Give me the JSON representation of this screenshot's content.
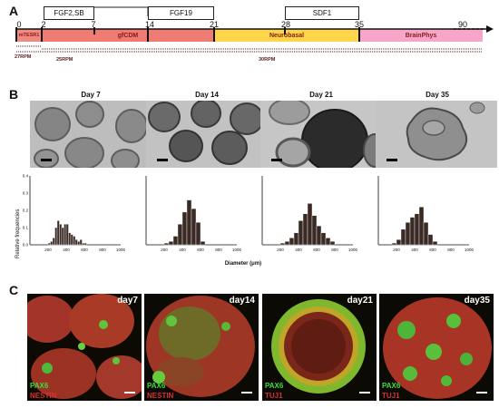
{
  "panels": {
    "a": "A",
    "b": "B",
    "c": "C"
  },
  "timeline": {
    "ticks": [
      "0",
      "2",
      "7",
      "14",
      "21",
      "28",
      "35",
      "90"
    ],
    "factors": {
      "fgf2_sb": "FGF2,SB",
      "fgf19": "FGF19",
      "sdf1": "SDF1"
    },
    "media": {
      "mtesr1": "mTESR1",
      "gfcdm": "gfCDM",
      "neurobasal": "Neurobasal",
      "brainphys": "BrainPhys"
    },
    "media_colors": {
      "mtesr1": "#f08a80",
      "gfcdm": "#ef7b72",
      "neurobasal": "#ffd54a",
      "brainphys": "#f7a6c9"
    },
    "rpm": {
      "rpm27": "27RPM",
      "rpm25": "25RPM",
      "rpm30": "30RPM"
    }
  },
  "panel_b": {
    "days": [
      "Day 7",
      "Day 14",
      "Day 21",
      "Day 35"
    ],
    "ylabel": "Relative frequencies",
    "xlabel": "Diameter (μm)",
    "y_ticks": [
      "0.0",
      "0.1",
      "0.2",
      "0.3",
      "0.4"
    ],
    "x_ticks": [
      "200",
      "400",
      "600",
      "800",
      "1000"
    ]
  },
  "chart_data": [
    {
      "type": "bar",
      "title": "Day 7",
      "xlabel": "Diameter (μm)",
      "ylabel": "Relative frequencies",
      "bin_width": 25,
      "x": [
        200,
        225,
        250,
        275,
        300,
        325,
        350,
        375,
        400,
        425,
        450,
        475,
        500,
        525,
        550,
        575,
        600
      ],
      "values": [
        0.01,
        0.02,
        0.04,
        0.1,
        0.14,
        0.12,
        0.1,
        0.12,
        0.12,
        0.07,
        0.06,
        0.05,
        0.03,
        0.02,
        0.03,
        0.01,
        0.01
      ],
      "xlim": [
        0,
        1000
      ],
      "ylim": [
        0,
        0.4
      ]
    },
    {
      "type": "bar",
      "title": "Day 14",
      "xlabel": "Diameter (μm)",
      "ylabel": "Relative frequencies",
      "bin_width": 50,
      "x": [
        200,
        250,
        300,
        350,
        400,
        450,
        500,
        550,
        600
      ],
      "values": [
        0.01,
        0.02,
        0.05,
        0.12,
        0.19,
        0.26,
        0.21,
        0.13,
        0.02
      ],
      "xlim": [
        0,
        1000
      ],
      "ylim": [
        0,
        0.4
      ]
    },
    {
      "type": "bar",
      "title": "Day 21",
      "xlabel": "Diameter (μm)",
      "ylabel": "Relative frequencies",
      "bin_width": 50,
      "x": [
        200,
        250,
        300,
        350,
        400,
        450,
        500,
        550,
        600,
        650,
        700,
        750
      ],
      "values": [
        0.01,
        0.02,
        0.04,
        0.07,
        0.14,
        0.18,
        0.24,
        0.17,
        0.11,
        0.07,
        0.04,
        0.02
      ],
      "xlim": [
        0,
        1000
      ],
      "ylim": [
        0,
        0.4
      ]
    },
    {
      "type": "bar",
      "title": "Day 35",
      "xlabel": "Diameter (μm)",
      "ylabel": "Relative frequencies",
      "bin_width": 50,
      "x": [
        150,
        200,
        250,
        300,
        350,
        400,
        450,
        500,
        550,
        600
      ],
      "values": [
        0.01,
        0.03,
        0.09,
        0.13,
        0.16,
        0.18,
        0.22,
        0.13,
        0.06,
        0.02
      ],
      "xlim": [
        0,
        1000
      ],
      "ylim": [
        0,
        0.4
      ]
    }
  ],
  "panel_c": [
    {
      "day": "day7",
      "marker1": "PAX6",
      "marker2": "NESTIN"
    },
    {
      "day": "day14",
      "marker1": "PAX6",
      "marker2": "NESTIN"
    },
    {
      "day": "day21",
      "marker1": "PAX6",
      "marker2": "TUJ1"
    },
    {
      "day": "day35",
      "marker1": "PAX6",
      "marker2": "TUJ1"
    }
  ],
  "colors": {
    "bar_fill": "#3a2a24",
    "pax6": "#3fdc3f",
    "red_marker": "#d93030"
  }
}
